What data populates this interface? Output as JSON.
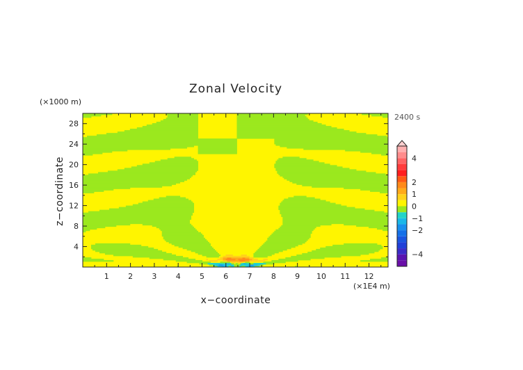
{
  "chart_data": {
    "type": "heatmap",
    "title": "Zonal Velocity",
    "xlabel": "x−coordinate",
    "ylabel": "z−coordinate",
    "x_scale_label": "(×1E4 m)",
    "y_scale_label": "(×1000 m)",
    "time_label": "2400 s",
    "xlim": [
      0,
      12.8
    ],
    "ylim": [
      0,
      30
    ],
    "x_ticks": [
      1,
      2,
      3,
      4,
      5,
      6,
      7,
      8,
      9,
      10,
      11,
      12
    ],
    "y_ticks": [
      4,
      8,
      12,
      16,
      20,
      24,
      28
    ],
    "x_tick_labels": [
      "1",
      "2",
      "3",
      "4",
      "5",
      "6",
      "7",
      "8",
      "9",
      "10",
      "11",
      "12"
    ],
    "y_tick_labels": [
      "4",
      "8",
      "12",
      "16",
      "20",
      "24",
      "28"
    ],
    "colorbar": {
      "bins": [
        {
          "lo": -5.0,
          "hi": -4.5,
          "color": "#6a0fa8"
        },
        {
          "lo": -4.5,
          "hi": -4.0,
          "color": "#5a14b0"
        },
        {
          "lo": -4.0,
          "hi": -3.5,
          "color": "#3b2cc8"
        },
        {
          "lo": -3.5,
          "hi": -3.0,
          "color": "#2040d8"
        },
        {
          "lo": -3.0,
          "hi": -2.5,
          "color": "#1a55e0"
        },
        {
          "lo": -2.5,
          "hi": -2.0,
          "color": "#1570e8"
        },
        {
          "lo": -2.0,
          "hi": -1.5,
          "color": "#1890ee"
        },
        {
          "lo": -1.5,
          "hi": -1.0,
          "color": "#1ab8e8"
        },
        {
          "lo": -1.0,
          "hi": -0.5,
          "color": "#22d4c8"
        },
        {
          "lo": -0.5,
          "hi": 0.0,
          "color": "#9be81e"
        },
        {
          "lo": 0.0,
          "hi": 0.5,
          "color": "#fff500"
        },
        {
          "lo": 0.5,
          "hi": 1.0,
          "color": "#ffd21a"
        },
        {
          "lo": 1.0,
          "hi": 1.5,
          "color": "#ffaa1a"
        },
        {
          "lo": 1.5,
          "hi": 2.0,
          "color": "#ff8a1a"
        },
        {
          "lo": 2.0,
          "hi": 2.5,
          "color": "#ff5a14"
        },
        {
          "lo": 2.5,
          "hi": 3.0,
          "color": "#ff1e1e"
        },
        {
          "lo": 3.0,
          "hi": 3.5,
          "color": "#ff3c3c"
        },
        {
          "lo": 3.5,
          "hi": 4.0,
          "color": "#ff6464"
        },
        {
          "lo": 4.0,
          "hi": 4.5,
          "color": "#ff8c8c"
        },
        {
          "lo": 4.5,
          "hi": 5.0,
          "color": "#ffb0b0"
        }
      ],
      "range": [
        -5,
        5
      ],
      "extend_max_color": "#ffd0d0",
      "labels": [
        {
          "value": 4,
          "text": "4"
        },
        {
          "value": 2,
          "text": "2"
        },
        {
          "value": 1,
          "text": "1"
        },
        {
          "value": 0,
          "text": "0"
        },
        {
          "value": -1,
          "text": "−1"
        },
        {
          "value": -2,
          "text": "−2"
        },
        {
          "value": -4,
          "text": "−4"
        }
      ]
    },
    "field": {
      "background_color": "#fff500",
      "center_x": 6.45,
      "description_regions": [
        {
          "name": "left-boundary-bands",
          "sign": "negative"
        },
        {
          "name": "right-boundary-bands",
          "sign": "negative"
        },
        {
          "name": "fan-bands",
          "sign": "negative"
        }
      ],
      "near_surface_features": [
        {
          "x": 5.9,
          "z": 0.5,
          "value": -1.0
        },
        {
          "x": 7.0,
          "z": 0.5,
          "value": -1.0
        },
        {
          "x": 6.0,
          "z": 1.5,
          "value": 1.2
        },
        {
          "x": 6.9,
          "z": 1.4,
          "value": 1.4
        }
      ]
    }
  }
}
